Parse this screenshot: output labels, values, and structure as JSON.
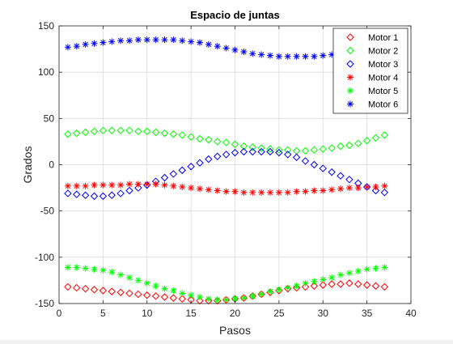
{
  "chart_data": {
    "type": "scatter",
    "title": "Espacio de juntas",
    "xlabel": "Pasos",
    "ylabel": "Grados",
    "xlim": [
      0,
      40
    ],
    "ylim": [
      -150,
      150
    ],
    "xticks": [
      0,
      5,
      10,
      15,
      20,
      25,
      30,
      35,
      40
    ],
    "yticks": [
      -150,
      -100,
      -50,
      0,
      50,
      100,
      150
    ],
    "grid": true,
    "legend_position": "top-right",
    "x": [
      1,
      2,
      3,
      4,
      5,
      6,
      7,
      8,
      9,
      10,
      11,
      12,
      13,
      14,
      15,
      16,
      17,
      18,
      19,
      20,
      21,
      22,
      23,
      24,
      25,
      26,
      27,
      28,
      29,
      30,
      31,
      32,
      33,
      34,
      35,
      36,
      37
    ],
    "series": [
      {
        "name": "Motor 1",
        "marker": "diamond",
        "color": "#ff0000",
        "values": [
          -132,
          -133,
          -134,
          -135,
          -136,
          -137,
          -138,
          -139,
          -140,
          -141,
          -142,
          -143,
          -144,
          -145,
          -146,
          -147,
          -147,
          -147,
          -146,
          -145,
          -144,
          -142,
          -140,
          -138,
          -136,
          -134,
          -133,
          -132,
          -131,
          -130,
          -129,
          -129,
          -128,
          -129,
          -130,
          -131,
          -132
        ]
      },
      {
        "name": "Motor 2",
        "marker": "diamond",
        "color": "#00ff00",
        "values": [
          33,
          34,
          35,
          36,
          37,
          37,
          37,
          37,
          36,
          36,
          35,
          34,
          33,
          32,
          30,
          28,
          27,
          25,
          24,
          22,
          20,
          19,
          18,
          17,
          16,
          16,
          15,
          15,
          16,
          17,
          18,
          20,
          21,
          23,
          26,
          29,
          32
        ]
      },
      {
        "name": "Motor 3",
        "marker": "diamond",
        "color": "#0000ff",
        "values": [
          -31,
          -32,
          -33,
          -34,
          -34,
          -33,
          -31,
          -28,
          -25,
          -22,
          -18,
          -14,
          -10,
          -6,
          -2,
          2,
          6,
          9,
          11,
          13,
          14,
          14,
          14,
          14,
          13,
          11,
          8,
          4,
          0,
          -4,
          -8,
          -12,
          -16,
          -20,
          -24,
          -28,
          -30
        ]
      },
      {
        "name": "Motor 4",
        "marker": "star",
        "color": "#ff0000",
        "values": [
          -23,
          -23,
          -23,
          -22,
          -22,
          -22,
          -22,
          -21,
          -21,
          -21,
          -21,
          -22,
          -23,
          -24,
          -25,
          -26,
          -27,
          -28,
          -29,
          -29,
          -30,
          -30,
          -30,
          -30,
          -30,
          -30,
          -29,
          -29,
          -28,
          -28,
          -27,
          -26,
          -25,
          -25,
          -24,
          -24,
          -23
        ]
      },
      {
        "name": "Motor 5",
        "marker": "star",
        "color": "#00ff00",
        "values": [
          -111,
          -111,
          -112,
          -113,
          -114,
          -116,
          -119,
          -122,
          -125,
          -128,
          -131,
          -134,
          -136,
          -139,
          -141,
          -143,
          -145,
          -146,
          -146,
          -145,
          -144,
          -142,
          -140,
          -137,
          -135,
          -133,
          -131,
          -128,
          -126,
          -124,
          -122,
          -119,
          -117,
          -115,
          -113,
          -112,
          -111
        ]
      },
      {
        "name": "Motor 6",
        "marker": "star",
        "color": "#0000ff",
        "values": [
          127,
          128,
          130,
          131,
          132,
          133,
          134,
          134,
          135,
          135,
          135,
          135,
          135,
          134,
          133,
          132,
          130,
          128,
          126,
          124,
          122,
          120,
          119,
          118,
          117,
          117,
          117,
          117,
          117,
          118,
          119,
          120,
          122,
          124,
          126,
          128,
          130
        ]
      }
    ]
  }
}
